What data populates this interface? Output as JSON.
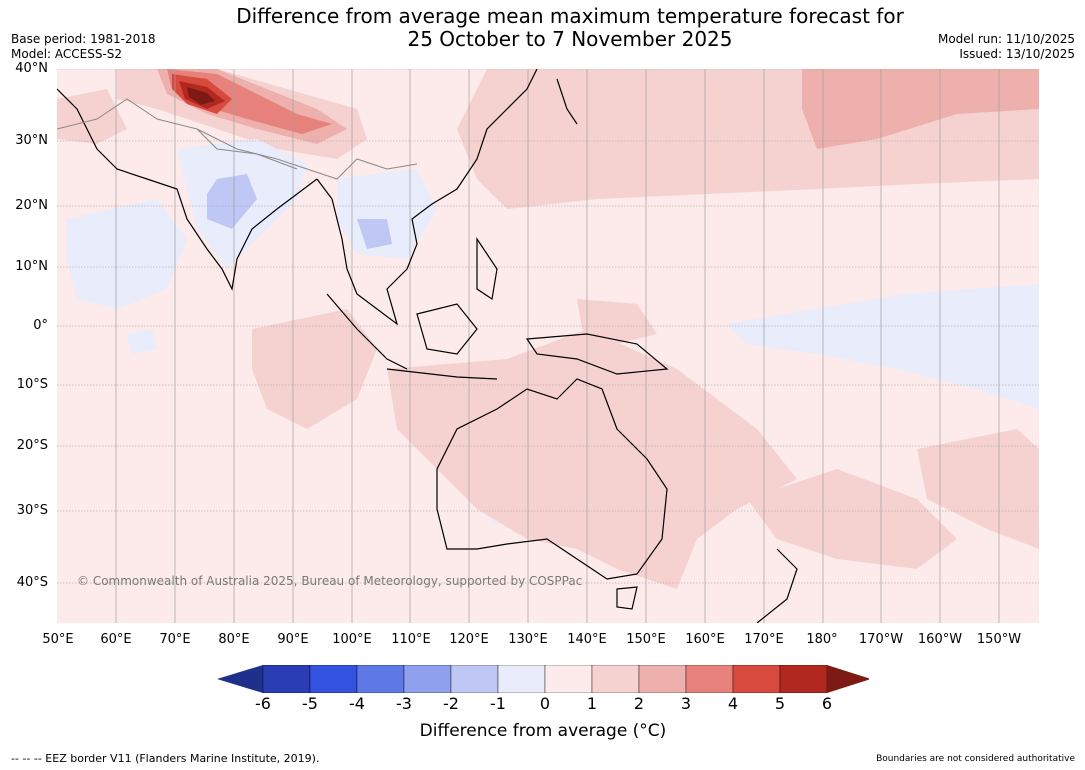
{
  "title": {
    "line1": "Difference from average mean maximum temperature forecast for",
    "line2": "25 October to 7 November 2025"
  },
  "meta_left": {
    "base_period": "Base period: 1981-2018",
    "model": "Model: ACCESS-S2"
  },
  "meta_right": {
    "model_run": "Model run: 11/10/2025",
    "issued": "Issued: 13/10/2025"
  },
  "map": {
    "latitude_labels": [
      "40°N",
      "30°N",
      "20°N",
      "10°N",
      "0°",
      "10°S",
      "20°S",
      "30°S",
      "40°S"
    ],
    "longitude_labels": [
      "50°E",
      "60°E",
      "70°E",
      "80°E",
      "90°E",
      "100°E",
      "110°E",
      "120°E",
      "130°E",
      "140°E",
      "150°E",
      "160°E",
      "170°E",
      "180°",
      "170°W",
      "160°W",
      "150°W"
    ],
    "copyright": "© Commonwealth of Australia 2025, Bureau of Meteorology, supported by COSPPac"
  },
  "colorbar": {
    "ticks": [
      "-6",
      "-5",
      "-4",
      "-3",
      "-2",
      "-1",
      "0",
      "1",
      "2",
      "3",
      "4",
      "5",
      "6"
    ],
    "colors": [
      "#1f2f8c",
      "#2a3db5",
      "#3352e0",
      "#5e78e6",
      "#8fa0ee",
      "#bfc7f4",
      "#e8ecfb",
      "#fcebea",
      "#f5d2d0",
      "#eeb0ad",
      "#e6817b",
      "#d84a3e",
      "#b0281f",
      "#7d1a14"
    ],
    "label": "Difference from average (°C)"
  },
  "footer": {
    "eez_legend": "--  --  -- EEZ border V11 (Flanders Marine Institute, 2019).",
    "boundaries_note": "Boundaries are not considered authoritative"
  }
}
